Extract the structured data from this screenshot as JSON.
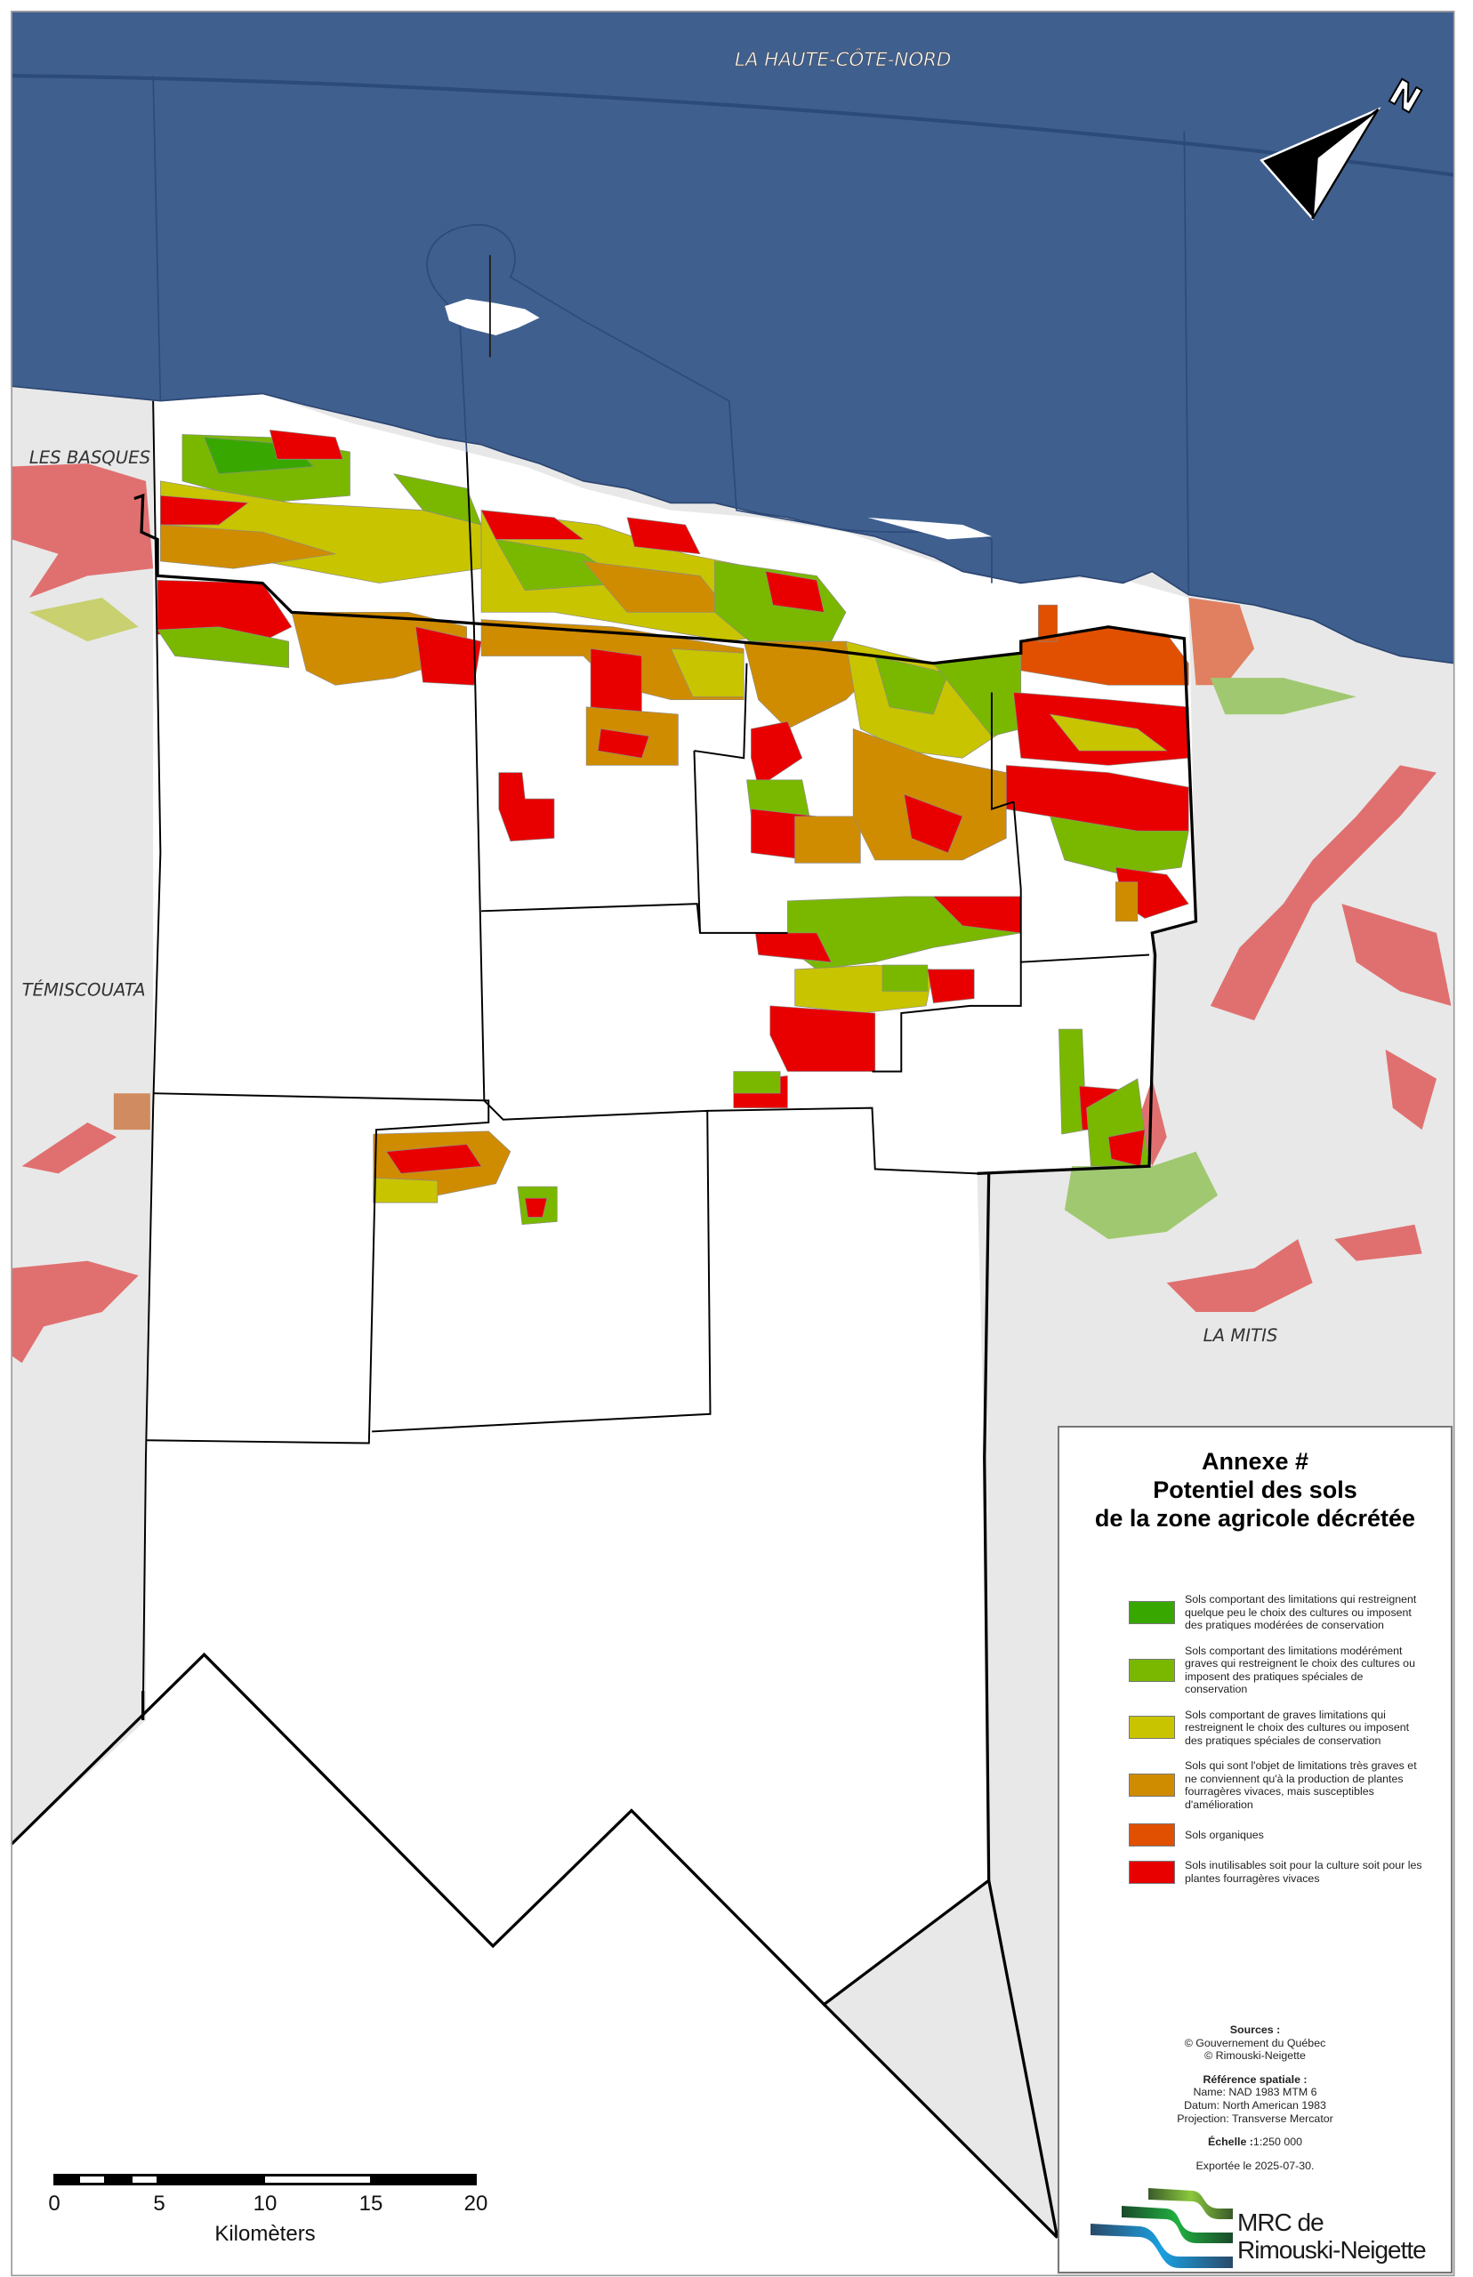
{
  "map": {
    "labels": {
      "north_region": "LA HAUTE-CÔTE-NORD",
      "west_region": "LES BASQUES",
      "southwest_region": "TÉMISCOUATA",
      "east_region": "LA MITIS"
    },
    "north_arrow": "N",
    "colors": {
      "sea": "#3f5f8f",
      "outside": "#e8e8e8",
      "territory": "#ffffff"
    }
  },
  "legend": {
    "title": [
      "Annexe #",
      "Potentiel des sols",
      "de la zone agricole décrétée"
    ],
    "items": [
      {
        "color": "#38a800",
        "label": "Sols comportant des limitations qui restreignent quelque peu le choix des cultures ou imposent des pratiques modérées de conservation"
      },
      {
        "color": "#7ab800",
        "label": "Sols comportant des limitations modérément graves qui restreignent le choix des cultures ou imposent des pratiques spéciales de conservation"
      },
      {
        "color": "#c8c400",
        "label": "Sols comportant de graves limitations qui restreignent le choix des cultures ou imposent des pratiques spéciales de conservation"
      },
      {
        "color": "#d08c00",
        "label": "Sols qui sont l'objet de limitations très graves et ne conviennent qu'à la production de plantes fourragères vivaces, mais susceptibles d'amélioration"
      },
      {
        "color": "#e05000",
        "label": "Sols organiques"
      },
      {
        "color": "#e80000",
        "label": "Sols inutilisables soit pour la culture soit pour les plantes fourragères vivaces"
      }
    ],
    "sources_title": "Sources :",
    "sources": [
      "© Gouvernement du Québec",
      "© Rimouski-Neigette"
    ],
    "reference_title": "Référence spatiale :",
    "reference": [
      "Name: NAD 1983 MTM 6",
      "Datum: North American 1983",
      "Projection: Transverse Mercator"
    ],
    "scale_title": "Échelle :",
    "scale_value": "1:250 000",
    "export": "Exportée le 2025-07-30.",
    "logo": [
      "MRC de",
      "Rimouski-Neigette"
    ]
  },
  "scalebar": {
    "ticks": [
      "0",
      "5",
      "10",
      "15",
      "20"
    ],
    "unit": "Kilomèters"
  }
}
